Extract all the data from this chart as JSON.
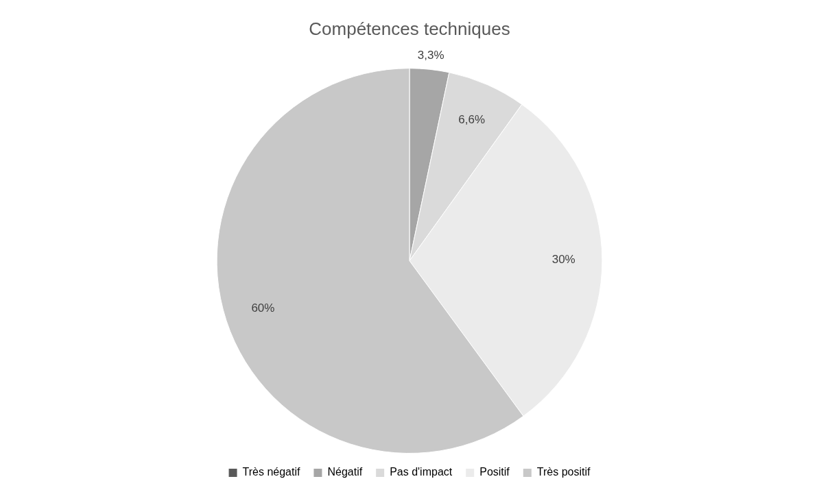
{
  "chart_data": {
    "type": "pie",
    "title": "Compétences techniques",
    "categories": [
      "Très négatif",
      "Négatif",
      "Pas d'impact",
      "Positif",
      "Très positif"
    ],
    "values": [
      0,
      3.3,
      6.6,
      30,
      60
    ],
    "colors": [
      "#595959",
      "#a6a6a6",
      "#dadada",
      "#ebebeb",
      "#c8c8c8"
    ],
    "value_labels": [
      null,
      "3,3%",
      "6,6%",
      "30%",
      "60%"
    ],
    "legend": "bottom"
  }
}
